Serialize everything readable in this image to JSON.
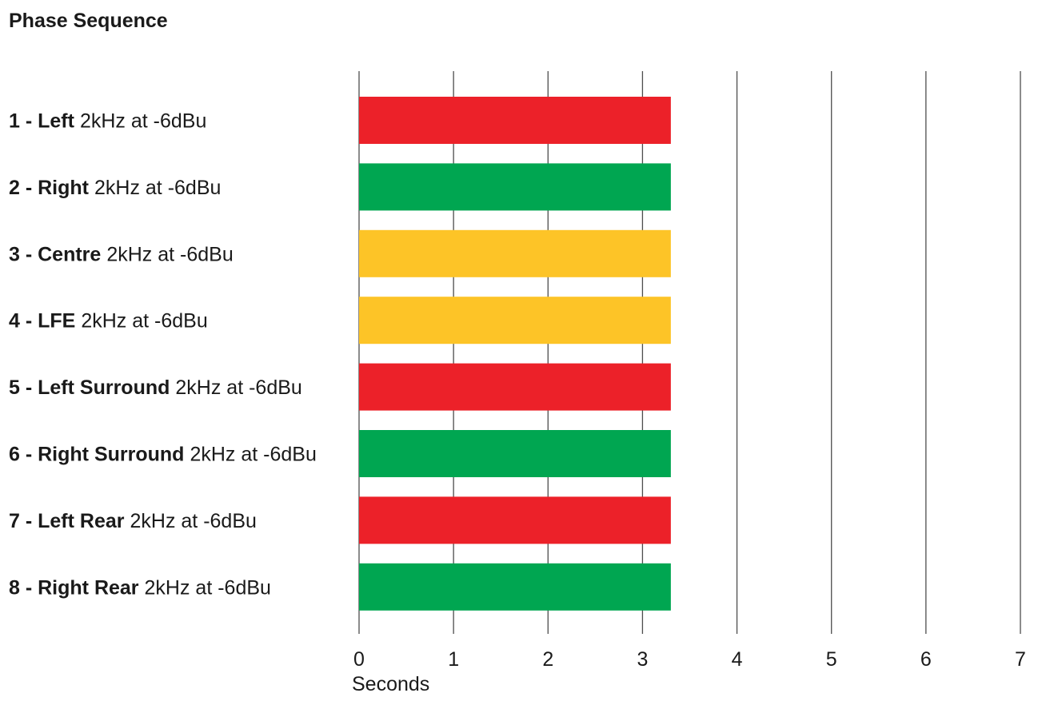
{
  "chart_data": {
    "type": "bar",
    "orientation": "horizontal",
    "title": "Phase Sequence",
    "xlabel": "Seconds",
    "ylabel": "",
    "xlim": [
      0,
      7
    ],
    "x_ticks": [
      "0",
      "1",
      "2",
      "3",
      "4",
      "5",
      "6",
      "7"
    ],
    "grid": "vertical",
    "categories": [
      {
        "number": "1 -",
        "name": "Left",
        "detail": "2kHz at -6dBu",
        "value": 3.3,
        "color": "#ec2129"
      },
      {
        "number": "2 -",
        "name": "Right",
        "detail": "2kHz at -6dBu",
        "value": 3.3,
        "color": "#00a651"
      },
      {
        "number": "3 -",
        "name": "Centre",
        "detail": "2kHz at -6dBu",
        "value": 3.3,
        "color": "#fdc427"
      },
      {
        "number": "4 -",
        "name": "LFE",
        "detail": "2kHz at -6dBu",
        "value": 3.3,
        "color": "#fdc427"
      },
      {
        "number": "5 -",
        "name": "Left Surround",
        "detail": "2kHz at -6dBu",
        "value": 3.3,
        "color": "#ec2129"
      },
      {
        "number": "6 -",
        "name": "Right Surround",
        "detail": "2kHz at -6dBu",
        "value": 3.3,
        "color": "#00a651"
      },
      {
        "number": "7 -",
        "name": "Left Rear",
        "detail": "2kHz at -6dBu",
        "value": 3.3,
        "color": "#ec2129"
      },
      {
        "number": "8 -",
        "name": "Right Rear",
        "detail": "2kHz at -6dBu",
        "value": 3.3,
        "color": "#00a651"
      }
    ],
    "colors": {
      "red": "#ec2129",
      "green": "#00a651",
      "yellow": "#fdc427",
      "grid": "#4d4d4d"
    }
  }
}
